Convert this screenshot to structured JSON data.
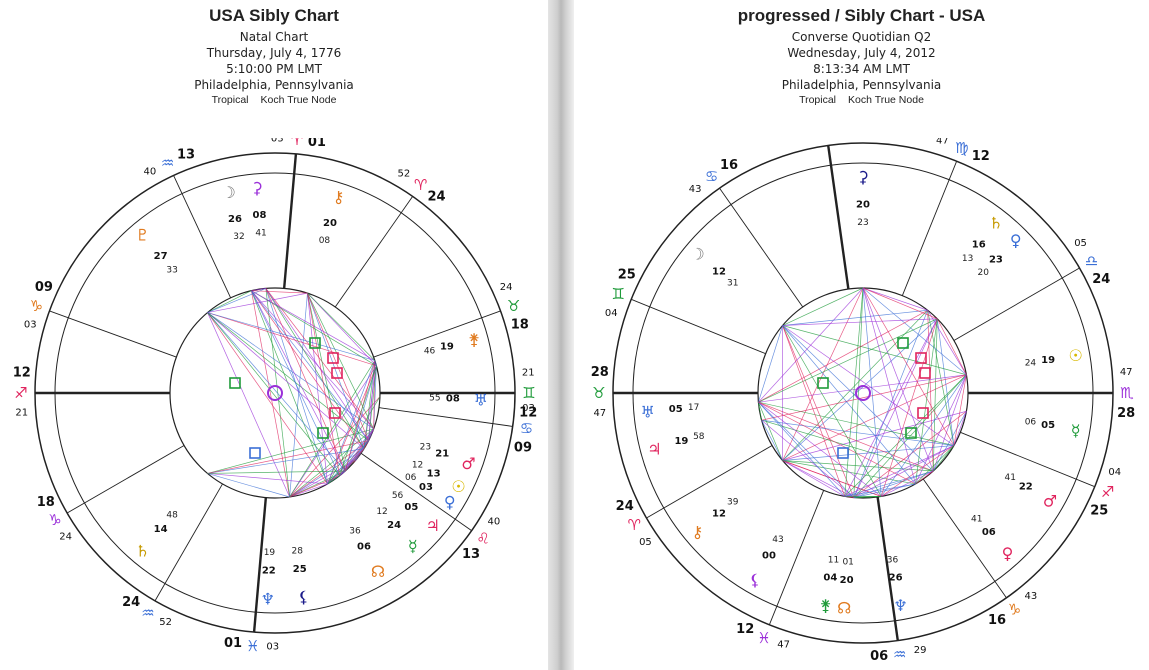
{
  "left": {
    "title": "USA Sibly Chart",
    "subtitle": "Natal Chart",
    "date": "Thursday, July 4, 1776",
    "time": "5:10:00 PM LMT",
    "place": "Philadelphia, Pennsylvania",
    "zodiac": "Tropical",
    "houses": "Koch True Node",
    "cusps": [
      {
        "deg": "12",
        "min": "21",
        "sign": "♐",
        "color": "#e0245e"
      },
      {
        "deg": "18",
        "min": "24",
        "sign": "♑",
        "color": "#9b30d9"
      },
      {
        "deg": "24",
        "min": "52",
        "sign": "♒",
        "color": "#3b6fd6"
      },
      {
        "deg": "01",
        "min": "03",
        "sign": "♓",
        "color": "#3b6fd6"
      },
      {
        "deg": "13",
        "min": "40",
        "sign": "♌",
        "color": "#e0245e"
      },
      {
        "deg": "09",
        "min": "03",
        "sign": "♋",
        "color": "#3b6fd6"
      },
      {
        "deg": "12",
        "min": "21",
        "sign": "♊",
        "color": "#1f9b3a"
      },
      {
        "deg": "18",
        "min": "24",
        "sign": "♉",
        "color": "#1f9b3a"
      },
      {
        "deg": "24",
        "min": "52",
        "sign": "♈",
        "color": "#e0245e"
      },
      {
        "deg": "01",
        "min": "03",
        "sign": "♈",
        "color": "#e0245e"
      },
      {
        "deg": "13",
        "min": "40",
        "sign": "♒",
        "color": "#3b6fd6"
      },
      {
        "deg": "09",
        "min": "03",
        "sign": "♑",
        "color": "#e07b20"
      }
    ],
    "planets": [
      {
        "glyph": "♆",
        "color": "#3b6fd6",
        "deg": "22",
        "min": "19"
      },
      {
        "glyph": "⚸",
        "color": "#1a1a8a",
        "deg": "25",
        "min": "28"
      },
      {
        "glyph": "☊",
        "color": "#e07b20",
        "deg": "06",
        "min": "36"
      },
      {
        "glyph": "♅",
        "color": "#3b6fd6",
        "deg": "08",
        "min": "55"
      },
      {
        "glyph": "♂",
        "color": "#e0245e",
        "deg": "21",
        "min": "23"
      },
      {
        "glyph": "♀",
        "color": "#3b6fd6",
        "deg": "03",
        "min": "06"
      },
      {
        "glyph": "♃",
        "color": "#e0245e",
        "deg": "05",
        "min": "56"
      },
      {
        "glyph": "☉",
        "color": "#d8b800",
        "deg": "13",
        "min": "12"
      },
      {
        "glyph": "☿",
        "color": "#1f9b3a",
        "deg": "24",
        "min": "12"
      },
      {
        "glyph": "♄",
        "color": "#c69a00",
        "deg": "14",
        "min": "48"
      },
      {
        "glyph": "♇",
        "color": "#e07b20",
        "deg": "27",
        "min": "33"
      },
      {
        "glyph": "☽",
        "color": "#777777",
        "deg": "26",
        "min": "32"
      },
      {
        "glyph": "⚳",
        "color": "#9b30d9",
        "deg": "08",
        "min": "41"
      },
      {
        "glyph": "⚷",
        "color": "#e07b20",
        "deg": "20",
        "min": "08"
      },
      {
        "glyph": "⚵",
        "color": "#e07b20",
        "deg": "19",
        "min": "46"
      }
    ]
  },
  "right": {
    "title": "progressed / Sibly Chart - USA",
    "subtitle": "Converse Quotidian Q2",
    "date": "Wednesday, July 4, 2012",
    "time": "8:13:34 AM LMT",
    "place": "Philadelphia, Pennsylvania",
    "zodiac": "Tropical",
    "houses": "Koch True Node",
    "cusps": [
      {
        "deg": "28",
        "min": "47",
        "sign": "♉",
        "color": "#1f9b3a"
      },
      {
        "deg": "24",
        "min": "05",
        "sign": "♈",
        "color": "#e0245e"
      },
      {
        "deg": "12",
        "min": "47",
        "sign": "♓",
        "color": "#9b30d9"
      },
      {
        "deg": "06",
        "min": "29",
        "sign": "♒",
        "color": "#3b6fd6"
      },
      {
        "deg": "16",
        "min": "43",
        "sign": "♑",
        "color": "#e07b20"
      },
      {
        "deg": "25",
        "min": "04",
        "sign": "♐",
        "color": "#e0245e"
      },
      {
        "deg": "28",
        "min": "47",
        "sign": "♏",
        "color": "#9b30d9"
      },
      {
        "deg": "24",
        "min": "05",
        "sign": "♎",
        "color": "#3b6fd6"
      },
      {
        "deg": "12",
        "min": "47",
        "sign": "♍",
        "color": "#3b6fd6"
      },
      {
        "deg": "06",
        "min": "29",
        "sign": "♌",
        "color": "#e0245e"
      },
      {
        "deg": "16",
        "min": "43",
        "sign": "♋",
        "color": "#3b6fd6"
      },
      {
        "deg": "25",
        "min": "04",
        "sign": "♊",
        "color": "#1f9b3a"
      }
    ],
    "planets": [
      {
        "glyph": "⚸",
        "color": "#9b30d9",
        "deg": "00",
        "min": "43"
      },
      {
        "glyph": "⚷",
        "color": "#e07b20",
        "deg": "12",
        "min": "39"
      },
      {
        "glyph": "☊",
        "color": "#e07b20",
        "deg": "20",
        "min": "01"
      },
      {
        "glyph": "♆",
        "color": "#3b6fd6",
        "deg": "26",
        "min": "36"
      },
      {
        "glyph": "♀",
        "color": "#e0245e",
        "deg": "06",
        "min": "41"
      },
      {
        "glyph": "♂",
        "color": "#e0245e",
        "deg": "22",
        "min": "41"
      },
      {
        "glyph": "☿",
        "color": "#1f9b3a",
        "deg": "05",
        "min": "06"
      },
      {
        "glyph": "☉",
        "color": "#d8b800",
        "deg": "19",
        "min": "24"
      },
      {
        "glyph": "♅",
        "color": "#3b6fd6",
        "deg": "05",
        "min": "17"
      },
      {
        "glyph": "♃",
        "color": "#e0245e",
        "deg": "19",
        "min": "58"
      },
      {
        "glyph": "☽",
        "color": "#777777",
        "deg": "12",
        "min": "31"
      },
      {
        "glyph": "⚳",
        "color": "#1a1a8a",
        "deg": "20",
        "min": "23"
      },
      {
        "glyph": "♄",
        "color": "#c69a00",
        "deg": "16",
        "min": "13"
      },
      {
        "glyph": "♀",
        "color": "#3b6fd6",
        "deg": "23",
        "min": "20"
      },
      {
        "glyph": "⚵",
        "color": "#1f9b3a",
        "deg": "04",
        "min": "11"
      }
    ]
  }
}
